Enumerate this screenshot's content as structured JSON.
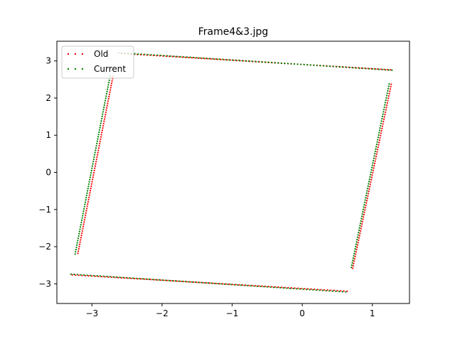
{
  "chart_data": {
    "type": "scatter",
    "title": "Frame4&3.jpg",
    "xlabel": "",
    "ylabel": "",
    "xlim": [
      -3.5,
      1.53
    ],
    "ylim": [
      -3.53,
      3.53
    ],
    "xticks": [
      -3,
      -2,
      -1,
      0,
      1
    ],
    "yticks": [
      -3,
      -2,
      -1,
      0,
      1,
      2,
      3
    ],
    "xtick_labels": [
      "−3",
      "−2",
      "−1",
      "0",
      "1"
    ],
    "ytick_labels": [
      "−3",
      "−2",
      "−1",
      "0",
      "1",
      "2",
      "3"
    ],
    "grid": false,
    "legend_position": "top-left",
    "series": [
      {
        "name": "Old",
        "color": "#ff0000",
        "segments": [
          {
            "from": [
              -2.58,
              3.2
            ],
            "to": [
              1.26,
              2.76
            ],
            "count": 85
          },
          {
            "from": [
              1.27,
              2.37
            ],
            "to": [
              0.72,
              -2.58
            ],
            "count": 80
          },
          {
            "from": [
              0.64,
              -3.2
            ],
            "to": [
              -3.28,
              -2.76
            ],
            "count": 85
          },
          {
            "from": [
              -3.2,
              -2.18
            ],
            "to": [
              -2.7,
              2.58
            ],
            "count": 80
          }
        ]
      },
      {
        "name": "Current",
        "color": "#008000",
        "segments": [
          {
            "from": [
              -2.62,
              3.22
            ],
            "to": [
              1.28,
              2.75
            ],
            "count": 85
          },
          {
            "from": [
              1.24,
              2.38
            ],
            "to": [
              0.7,
              -2.56
            ],
            "count": 80
          },
          {
            "from": [
              0.62,
              -3.22
            ],
            "to": [
              -3.3,
              -2.74
            ],
            "count": 85
          },
          {
            "from": [
              -3.24,
              -2.2
            ],
            "to": [
              -2.74,
              2.6
            ],
            "count": 80
          }
        ]
      }
    ]
  }
}
